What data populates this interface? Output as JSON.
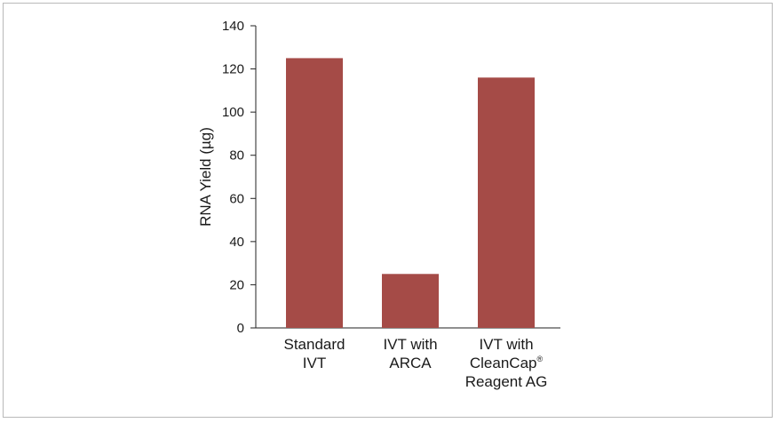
{
  "chart_data": {
    "type": "bar",
    "title": "",
    "xlabel": "",
    "ylabel": "RNA Yield (µg)",
    "ylim": [
      0,
      140
    ],
    "yticks": [
      0,
      20,
      40,
      60,
      80,
      100,
      120,
      140
    ],
    "categories": [
      [
        "Standard",
        "IVT"
      ],
      [
        "IVT with",
        "ARCA"
      ],
      [
        "IVT with",
        "CleanCap®",
        "Reagent AG"
      ]
    ],
    "values": [
      125,
      25,
      116
    ],
    "bar_color": "#a54b47",
    "grid": false
  }
}
